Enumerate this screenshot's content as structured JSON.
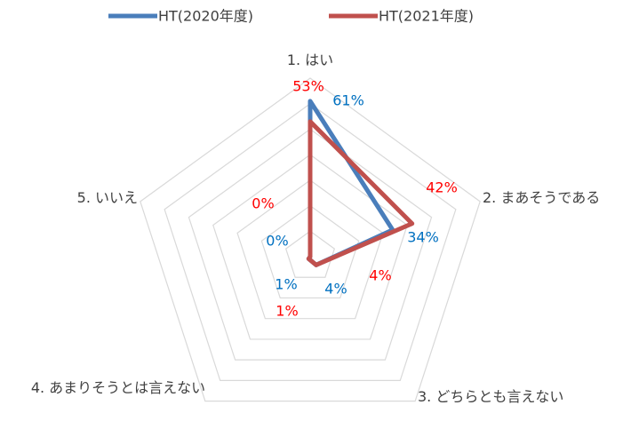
{
  "chart_data": {
    "type": "radar",
    "categories": [
      "1. はい",
      "2. まあそうである",
      "3. どちらとも言えない",
      "4. あまりそうとは言えない",
      "5. いいえ"
    ],
    "series": [
      {
        "name": "HT(2020年度)",
        "color": "#4a7ebb",
        "label_color": "#0070c0",
        "values": [
          61,
          34,
          4,
          1,
          0
        ],
        "value_labels": [
          "61%",
          "34%",
          "4%",
          "1%",
          "0%"
        ]
      },
      {
        "name": "HT(2021年度)",
        "color": "#c0504d",
        "label_color": "#ff0000",
        "values": [
          53,
          42,
          4,
          1,
          0
        ],
        "value_labels": [
          "53%",
          "42%",
          "4%",
          "1%",
          "0%"
        ]
      }
    ],
    "ylim": [
      0,
      70
    ],
    "yticks": [
      0,
      10,
      20,
      30,
      40,
      50,
      60,
      70
    ],
    "grid": true,
    "legend": "top"
  }
}
